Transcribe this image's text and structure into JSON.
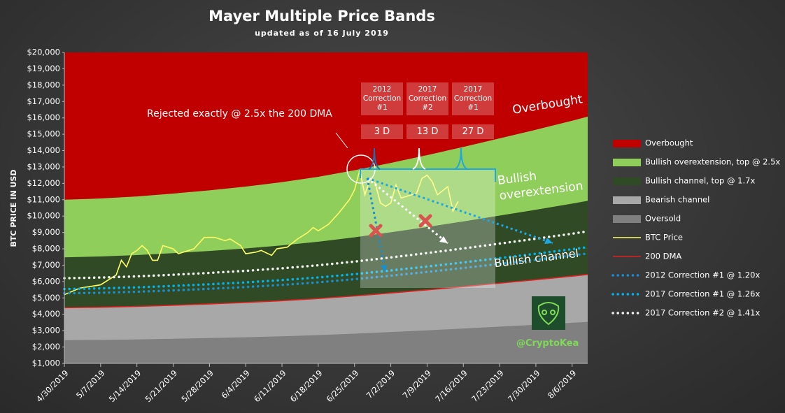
{
  "chart_data": {
    "type": "area",
    "title": "Mayer Multiple Price Bands",
    "subtitle": "updated as of 16 July 2019",
    "y_label": "BTC PRICE IN USD",
    "x": [
      "4/30/2019",
      "5/7/2019",
      "5/14/2019",
      "5/21/2019",
      "5/28/2019",
      "6/4/2019",
      "6/11/2019",
      "6/18/2019",
      "6/25/2019",
      "7/2/2019",
      "7/9/2019",
      "7/16/2019",
      "7/23/2019",
      "7/30/2019",
      "8/6/2019",
      "8/9/2019"
    ],
    "xlim": [
      "4/30/2019",
      "8/9/2019"
    ],
    "xticks": [
      "4/30/2019",
      "5/7/2019",
      "5/14/2019",
      "5/21/2019",
      "5/28/2019",
      "6/4/2019",
      "6/11/2019",
      "6/18/2019",
      "6/25/2019",
      "7/2/2019",
      "7/9/2019",
      "7/16/2019",
      "7/23/2019",
      "7/30/2019",
      "8/6/2019"
    ],
    "ylim": [
      1000,
      20000
    ],
    "yticks": [
      {
        "value": 1000,
        "label": "$1,000"
      },
      {
        "value": 2000,
        "label": "$2,000"
      },
      {
        "value": 3000,
        "label": "$3,000"
      },
      {
        "value": 4000,
        "label": "$4,000"
      },
      {
        "value": 5000,
        "label": "$5,000"
      },
      {
        "value": 6000,
        "label": "$6,000"
      },
      {
        "value": 7000,
        "label": "$7,000"
      },
      {
        "value": 8000,
        "label": "$8,000"
      },
      {
        "value": 9000,
        "label": "$9,000"
      },
      {
        "value": 10000,
        "label": "$10,000"
      },
      {
        "value": 11000,
        "label": "$11,000"
      },
      {
        "value": 12000,
        "label": "$12,000"
      },
      {
        "value": 13000,
        "label": "$13,000"
      },
      {
        "value": 14000,
        "label": "$14,000"
      },
      {
        "value": 15000,
        "label": "$15,000"
      },
      {
        "value": 16000,
        "label": "$16,000"
      },
      {
        "value": 17000,
        "label": "$17,000"
      },
      {
        "value": 18000,
        "label": "$18,000"
      },
      {
        "value": 19000,
        "label": "$19,000"
      },
      {
        "value": 20000,
        "label": "$20,000"
      }
    ],
    "legend": "right",
    "series": [
      {
        "name": "Overbought",
        "type": "area",
        "color": "#c00000",
        "values": [
          20000,
          20000,
          20000,
          20000,
          20000,
          20000,
          20000,
          20000,
          20000,
          20000,
          20000,
          20000,
          20000,
          20000,
          20000,
          20000
        ]
      },
      {
        "name": "Bullish overextension, top @ 2.5x",
        "type": "area",
        "color": "#8fce5a",
        "values": [
          11000,
          11075,
          11200,
          11375,
          11575,
          11800,
          12075,
          12400,
          12800,
          13250,
          13725,
          14225,
          14750,
          15275,
          15825,
          16075
        ]
      },
      {
        "name": "Bullish channel, top @ 1.7x",
        "type": "area",
        "color": "#2f4a24",
        "values": [
          7480,
          7531,
          7616,
          7735,
          7871,
          8024,
          8211,
          8432,
          8704,
          9010,
          9333,
          9673,
          10030,
          10387,
          10761,
          10931
        ]
      },
      {
        "name": "Bearish channel",
        "type": "area",
        "color": "#a8a8a8",
        "values": [
          4400,
          4430,
          4480,
          4550,
          4630,
          4720,
          4830,
          4960,
          5120,
          5300,
          5490,
          5690,
          5900,
          6110,
          6330,
          6430
        ]
      },
      {
        "name": "Oversold",
        "type": "area",
        "color": "#808080",
        "values": [
          2420,
          2437,
          2464,
          2503,
          2547,
          2596,
          2657,
          2728,
          2816,
          2915,
          3020,
          3130,
          3245,
          3361,
          3482,
          3537
        ]
      },
      {
        "name": "BTC Price",
        "type": "line",
        "color": "#ffff66",
        "x": [
          "4/30/2019",
          "5/3/2019",
          "5/5/2019",
          "5/7/2019",
          "5/9/2019",
          "5/10/2019",
          "5/11/2019",
          "5/12/2019",
          "5/13/2019",
          "5/14/2019",
          "5/15/2019",
          "5/16/2019",
          "5/17/2019",
          "5/18/2019",
          "5/19/2019",
          "5/21/2019",
          "5/22/2019",
          "5/23/2019",
          "5/25/2019",
          "5/27/2019",
          "5/29/2019",
          "5/31/2019",
          "6/1/2019",
          "6/3/2019",
          "6/4/2019",
          "6/6/2019",
          "6/7/2019",
          "6/9/2019",
          "6/10/2019",
          "6/12/2019",
          "6/14/2019",
          "6/16/2019",
          "6/17/2019",
          "6/18/2019",
          "6/20/2019",
          "6/22/2019",
          "6/24/2019",
          "6/25/2019",
          "6/26/2019",
          "6/27/2019",
          "6/28/2019",
          "6/29/2019",
          "6/30/2019",
          "7/1/2019",
          "7/2/2019",
          "7/3/2019",
          "7/4/2019",
          "7/6/2019",
          "7/7/2019",
          "7/8/2019",
          "7/9/2019",
          "7/10/2019",
          "7/11/2019",
          "7/13/2019",
          "7/14/2019",
          "7/15/2019"
        ],
        "values": [
          5200,
          5600,
          5700,
          5800,
          6200,
          6400,
          7300,
          6900,
          7700,
          7900,
          8200,
          7900,
          7300,
          7300,
          8200,
          8000,
          7700,
          7800,
          8000,
          8700,
          8700,
          8500,
          8600,
          8200,
          7700,
          7800,
          7900,
          7600,
          8000,
          8100,
          8600,
          9000,
          9300,
          9100,
          9500,
          10200,
          11000,
          11600,
          12800,
          11300,
          12300,
          12000,
          10800,
          10600,
          10800,
          11900,
          11100,
          11300,
          11400,
          12300,
          12500,
          12100,
          11300,
          11800,
          10300,
          10900
        ]
      },
      {
        "name": "200 DMA",
        "type": "line",
        "color": "#e02020",
        "values": [
          4400,
          4430,
          4480,
          4550,
          4630,
          4720,
          4830,
          4960,
          5120,
          5300,
          5490,
          5690,
          5900,
          6110,
          6330,
          6430
        ]
      },
      {
        "name": "2012 Correction #1 @ 1.20x",
        "type": "line",
        "style": "dotted",
        "color": "#1a8fd0",
        "values": [
          5280,
          5316,
          5376,
          5460,
          5556,
          5664,
          5796,
          5952,
          6144,
          6360,
          6588,
          6828,
          7080,
          7332,
          7596,
          7716
        ]
      },
      {
        "name": "2017 Correction #1 @ 1.26x",
        "type": "line",
        "style": "dotted",
        "color": "#00b4f0",
        "values": [
          5544,
          5582,
          5645,
          5733,
          5834,
          5947,
          6086,
          6250,
          6451,
          6678,
          6917,
          7169,
          7434,
          7699,
          7976,
          8102
        ]
      },
      {
        "name": "2017 Correction #2 @ 1.41x",
        "type": "line",
        "style": "dotted",
        "color": "#f2f2f2",
        "values": [
          6204,
          6246,
          6317,
          6416,
          6528,
          6655,
          6810,
          6994,
          7220,
          7473,
          7741,
          8023,
          8319,
          8615,
          8925,
          9066
        ]
      }
    ],
    "annotations": {
      "rejected": "Rejected exactly @ 2.5x the 200 DMA",
      "overbought": "Overbought",
      "overextension": "Bullish overextension",
      "channel": "Bullish channel",
      "handle": "@CryptoKea"
    },
    "corrections": [
      {
        "label": "2012 Correction #1",
        "days": "3 D"
      },
      {
        "label": "2017 Correction #2",
        "days": "13 D"
      },
      {
        "label": "2017 Correction #1",
        "days": "27 D"
      }
    ]
  }
}
